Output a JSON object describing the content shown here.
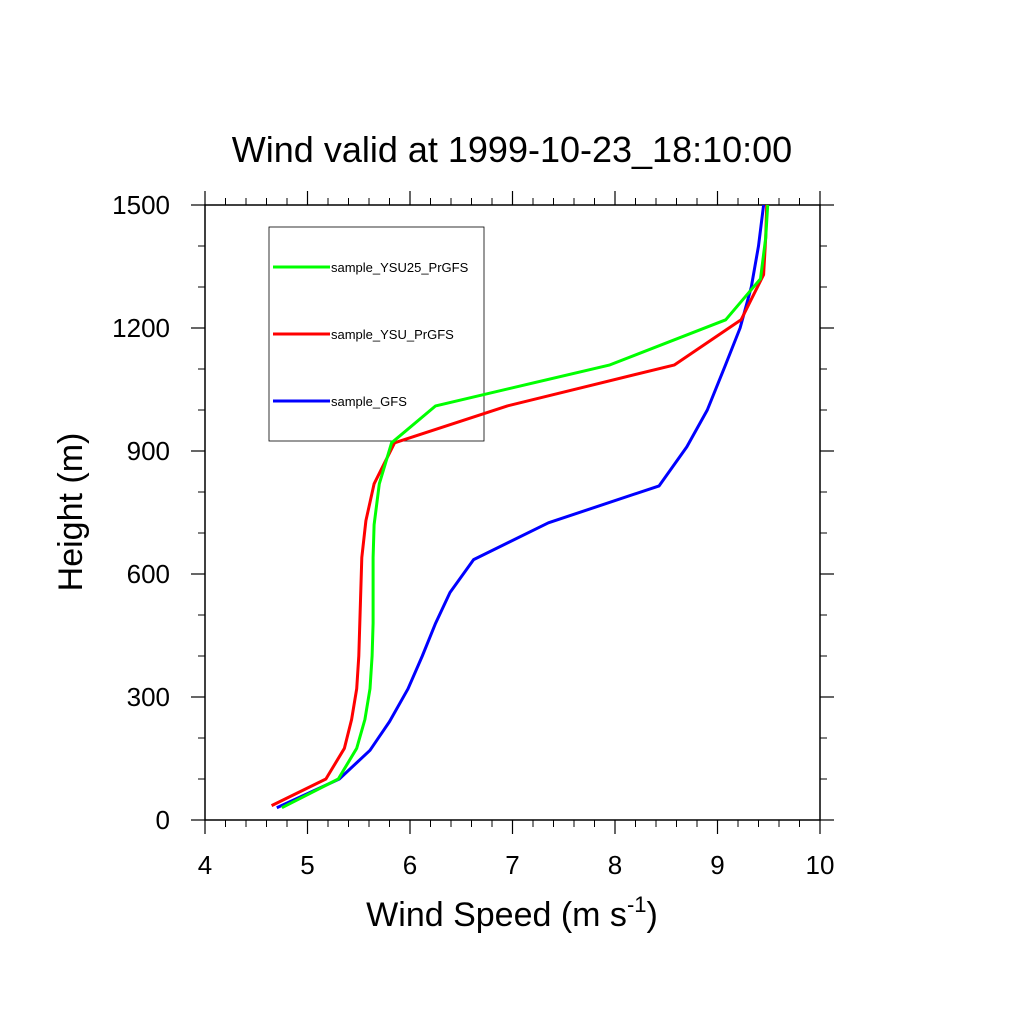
{
  "chart_data": {
    "type": "line",
    "title": "Wind valid at 1999-10-23_18:10:00",
    "xlabel": "Wind Speed (m s",
    "xlabel_superscript": "-1",
    "xlabel_suffix": ")",
    "ylabel": "Height (m)",
    "xlim": [
      4,
      10
    ],
    "ylim": [
      0,
      1500
    ],
    "x_ticks": [
      4,
      5,
      6,
      7,
      8,
      9,
      10
    ],
    "y_ticks": [
      0,
      300,
      600,
      900,
      1200,
      1500
    ],
    "x_minor_step": 0.2,
    "y_minor_step": 100,
    "grid": false,
    "legend_placement": "top-left",
    "series": [
      {
        "name": "sample_YSU25_PrGFS",
        "color": "#00ff00",
        "points": [
          [
            4.75,
            30
          ],
          [
            5.3,
            100
          ],
          [
            5.48,
            175
          ],
          [
            5.56,
            245
          ],
          [
            5.61,
            320
          ],
          [
            5.63,
            400
          ],
          [
            5.64,
            480
          ],
          [
            5.64,
            560
          ],
          [
            5.64,
            640
          ],
          [
            5.65,
            720
          ],
          [
            5.7,
            820
          ],
          [
            5.82,
            920
          ],
          [
            6.25,
            1010
          ],
          [
            7.95,
            1110
          ],
          [
            9.08,
            1220
          ],
          [
            9.42,
            1320
          ],
          [
            9.47,
            1420
          ],
          [
            9.49,
            1500
          ]
        ]
      },
      {
        "name": "sample_YSU_PrGFS",
        "color": "#ff0000",
        "points": [
          [
            4.65,
            35
          ],
          [
            5.18,
            100
          ],
          [
            5.36,
            175
          ],
          [
            5.43,
            245
          ],
          [
            5.48,
            320
          ],
          [
            5.5,
            400
          ],
          [
            5.51,
            480
          ],
          [
            5.52,
            560
          ],
          [
            5.53,
            640
          ],
          [
            5.57,
            730
          ],
          [
            5.65,
            820
          ],
          [
            5.85,
            920
          ],
          [
            6.95,
            1010
          ],
          [
            8.58,
            1110
          ],
          [
            9.23,
            1220
          ],
          [
            9.45,
            1330
          ],
          [
            9.47,
            1420
          ],
          [
            9.48,
            1500
          ]
        ]
      },
      {
        "name": "sample_GFS",
        "color": "#0000ff",
        "points": [
          [
            4.7,
            30
          ],
          [
            5.31,
            100
          ],
          [
            5.61,
            170
          ],
          [
            5.8,
            240
          ],
          [
            5.98,
            320
          ],
          [
            6.12,
            400
          ],
          [
            6.25,
            480
          ],
          [
            6.39,
            555
          ],
          [
            6.62,
            635
          ],
          [
            7.35,
            725
          ],
          [
            8.43,
            815
          ],
          [
            8.7,
            910
          ],
          [
            8.9,
            1000
          ],
          [
            9.07,
            1105
          ],
          [
            9.22,
            1200
          ],
          [
            9.33,
            1300
          ],
          [
            9.4,
            1400
          ],
          [
            9.45,
            1500
          ]
        ]
      }
    ]
  }
}
